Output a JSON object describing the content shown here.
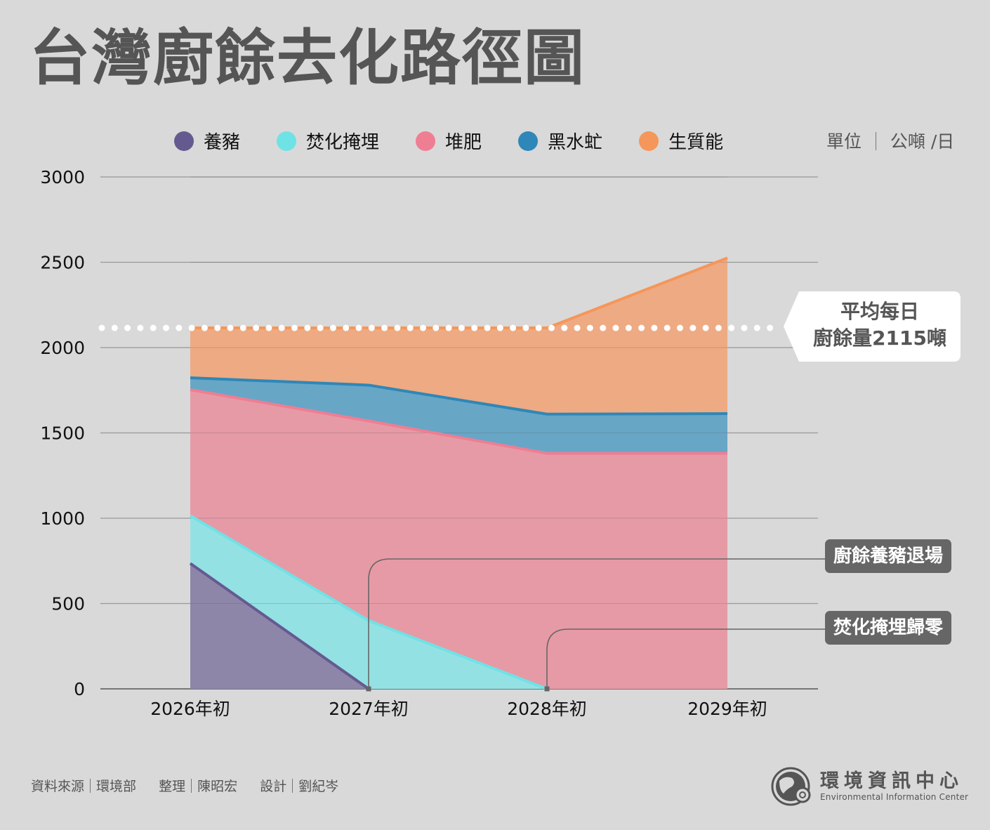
{
  "title": "台灣廚餘去化路徑圖",
  "unit_label": "單位",
  "unit_value": "公噸 /日",
  "average_callout": {
    "line1": "平均每日",
    "line2": "廚餘量2115噸"
  },
  "annotations": [
    {
      "label": "廚餘養豬退場",
      "at": "2027年初"
    },
    {
      "label": "焚化掩埋歸零",
      "at": "2028年初"
    }
  ],
  "footer": {
    "source_label": "資料來源",
    "source_value": "環境部",
    "editor_label": "整理",
    "editor_value": "陳昭宏",
    "design_label": "設計",
    "design_value": "劉紀岑"
  },
  "logo": {
    "name_cn": "環境資訊中心",
    "name_en": "Environmental Information Center"
  },
  "chart_data": {
    "type": "area",
    "stacked": true,
    "title": "台灣廚餘去化路徑圖",
    "xlabel": "",
    "ylabel": "公噸/日",
    "categories": [
      "2026年初",
      "2027年初",
      "2028年初",
      "2029年初"
    ],
    "ylim": [
      0,
      3000
    ],
    "yticks": [
      0,
      500,
      1000,
      1500,
      2000,
      2500,
      3000
    ],
    "grid": true,
    "legend_position": "top",
    "series": [
      {
        "name": "養豬",
        "color": "#655a90",
        "fill": "#8d86a9",
        "values": [
          735,
          0,
          0,
          0
        ]
      },
      {
        "name": "焚化掩埋",
        "color": "#6fe2e6",
        "fill": "#94e1e3",
        "values": [
          280,
          400,
          0,
          0
        ]
      },
      {
        "name": "堆肥",
        "color": "#ef7e93",
        "fill": "#e69aa6",
        "values": [
          738,
          1170,
          1380,
          1380
        ]
      },
      {
        "name": "黑水虻",
        "color": "#2e87b8",
        "fill": "#68a6c6",
        "values": [
          70,
          210,
          230,
          233
        ]
      },
      {
        "name": "生質能",
        "color": "#f5965a",
        "fill": "#eeaa82",
        "values": [
          292,
          335,
          505,
          912
        ]
      }
    ],
    "reference_line": {
      "value": 2115,
      "style": "dotted",
      "color": "#ffffff",
      "label": "平均每日廚餘量2115噸"
    }
  }
}
